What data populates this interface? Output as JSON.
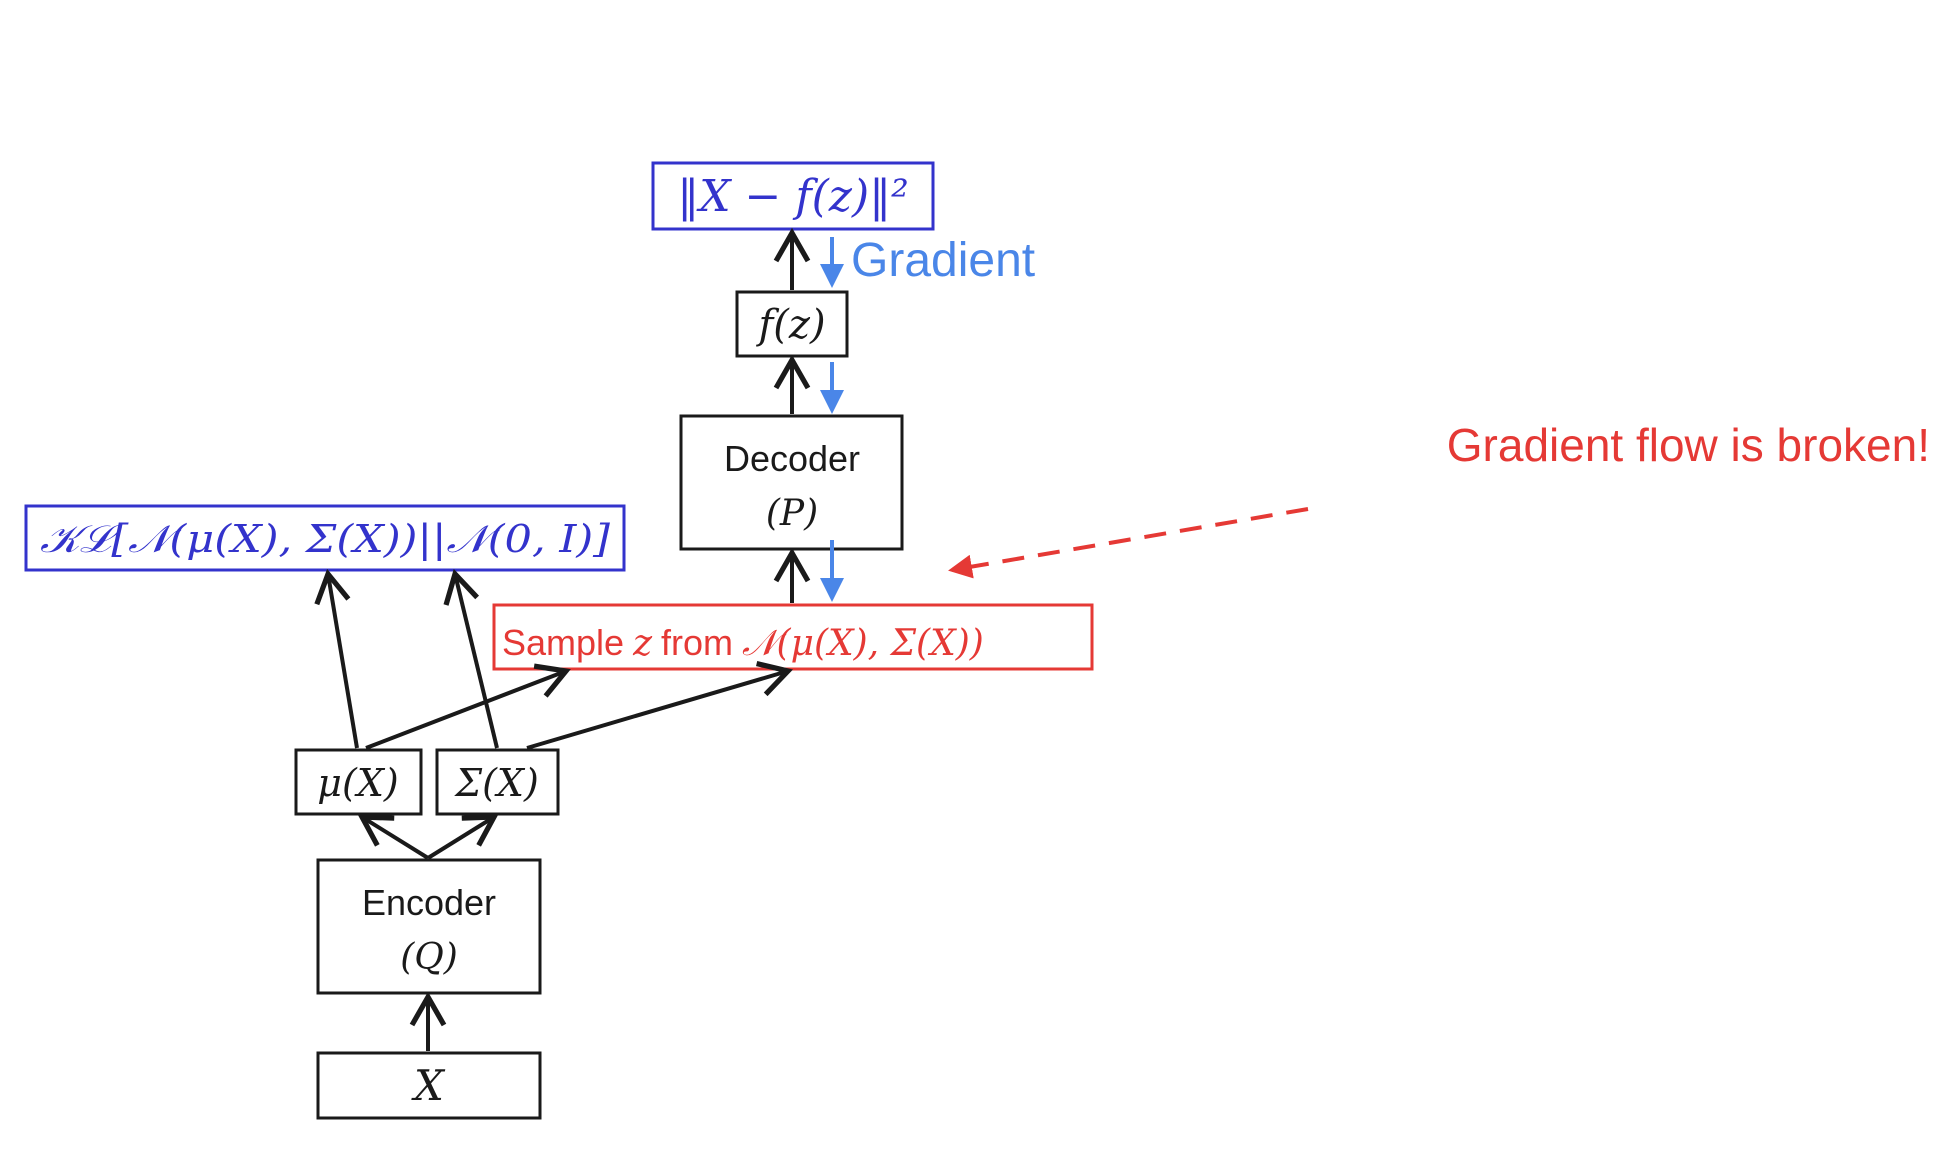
{
  "nodes": {
    "recon_loss": "‖X − f(z)‖²",
    "fz": "f(z)",
    "decoder_title": "Decoder",
    "decoder_sub": "(P)",
    "kl_loss": "𝒦ℒ[𝒩(μ(X), Σ(X))||𝒩(0, I)]",
    "sample_prefix": "Sample",
    "sample_var": "z",
    "sample_mid": "from",
    "sample_dist": "𝒩(μ(X), Σ(X))",
    "mu": "μ(X)",
    "sigma": "Σ(X)",
    "encoder_title": "Encoder",
    "encoder_sub": "(Q)",
    "input": "X"
  },
  "labels": {
    "gradient": "Gradient",
    "broken": "Gradient flow is broken!"
  },
  "colors": {
    "black": "#1a1a1a",
    "loss_blue": "#3333cc",
    "gradient_blue": "#4a86e8",
    "red": "#e53935"
  }
}
